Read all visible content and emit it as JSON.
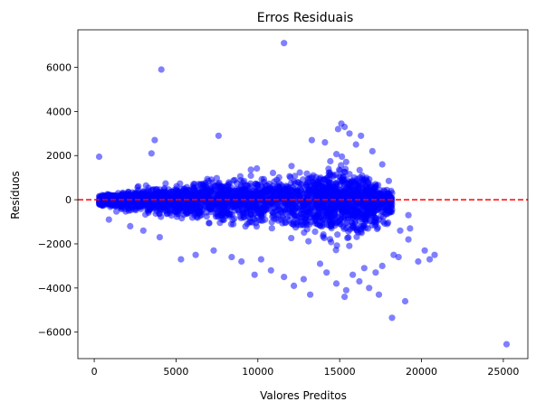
{
  "chart_data": {
    "type": "scatter",
    "title": "Erros Residuais",
    "xlabel": "Valores Preditos",
    "ylabel": "Resíduos",
    "xlim": [
      -1000,
      26500
    ],
    "ylim": [
      -7200,
      7700
    ],
    "xticks": [
      0,
      5000,
      10000,
      15000,
      20000,
      25000
    ],
    "xtick_labels": [
      "0",
      "5000",
      "10000",
      "15000",
      "20000",
      "25000"
    ],
    "yticks": [
      -6000,
      -4000,
      -2000,
      0,
      2000,
      4000,
      6000
    ],
    "ytick_labels": [
      "−6000",
      "−4000",
      "−2000",
      "0",
      "2000",
      "4000",
      "6000"
    ],
    "reference_line": {
      "y": 0,
      "color": "#ff0000",
      "style": "dashed"
    },
    "point_color": "#0000ff",
    "point_alpha": 0.5,
    "grid": false,
    "legend": "none",
    "bulk_envelope": [
      {
        "x": 300,
        "low": -400,
        "high": 400
      },
      {
        "x": 1500,
        "low": -700,
        "high": 500
      },
      {
        "x": 3000,
        "low": -1000,
        "high": 800
      },
      {
        "x": 4500,
        "low": -1300,
        "high": 1100
      },
      {
        "x": 6000,
        "low": -1500,
        "high": 1300
      },
      {
        "x": 8000,
        "low": -1800,
        "high": 1500
      },
      {
        "x": 10000,
        "low": -2000,
        "high": 1600
      },
      {
        "x": 12000,
        "low": -2200,
        "high": 1800
      },
      {
        "x": 14000,
        "low": -2500,
        "high": 2100
      },
      {
        "x": 15500,
        "low": -2700,
        "high": 2300
      },
      {
        "x": 16500,
        "low": -2500,
        "high": 1500
      },
      {
        "x": 17500,
        "low": -1800,
        "high": 900
      },
      {
        "x": 18200,
        "low": -1200,
        "high": 700
      }
    ],
    "outliers": [
      {
        "x": 11600,
        "y": 7100
      },
      {
        "x": 4100,
        "y": 5900
      },
      {
        "x": 7600,
        "y": 2900
      },
      {
        "x": 3700,
        "y": 2700
      },
      {
        "x": 3500,
        "y": 2100
      },
      {
        "x": 300,
        "y": 1950
      },
      {
        "x": 15100,
        "y": 3450
      },
      {
        "x": 15300,
        "y": 3300
      },
      {
        "x": 14900,
        "y": 3200
      },
      {
        "x": 15600,
        "y": 3000
      },
      {
        "x": 16300,
        "y": 2900
      },
      {
        "x": 13300,
        "y": 2700
      },
      {
        "x": 14100,
        "y": 2600
      },
      {
        "x": 16000,
        "y": 2500
      },
      {
        "x": 17000,
        "y": 2200
      },
      {
        "x": 17600,
        "y": 1600
      },
      {
        "x": 18000,
        "y": 850
      },
      {
        "x": 18200,
        "y": -450
      },
      {
        "x": 25200,
        "y": -6550
      },
      {
        "x": 18200,
        "y": -5350
      },
      {
        "x": 19000,
        "y": -4600
      },
      {
        "x": 17400,
        "y": -4300
      },
      {
        "x": 16800,
        "y": -4000
      },
      {
        "x": 15400,
        "y": -4100
      },
      {
        "x": 15300,
        "y": -4400
      },
      {
        "x": 13200,
        "y": -4300
      },
      {
        "x": 12200,
        "y": -3900
      },
      {
        "x": 11600,
        "y": -3500
      },
      {
        "x": 10800,
        "y": -3200
      },
      {
        "x": 9800,
        "y": -3400
      },
      {
        "x": 14800,
        "y": -3800
      },
      {
        "x": 16200,
        "y": -3700
      },
      {
        "x": 17200,
        "y": -3300
      },
      {
        "x": 18600,
        "y": -2600
      },
      {
        "x": 19800,
        "y": -2800
      },
      {
        "x": 20500,
        "y": -2700
      },
      {
        "x": 20800,
        "y": -2500
      },
      {
        "x": 20200,
        "y": -2300
      },
      {
        "x": 19200,
        "y": -1800
      },
      {
        "x": 19300,
        "y": -1300
      },
      {
        "x": 19200,
        "y": -700
      },
      {
        "x": 18700,
        "y": -1400
      },
      {
        "x": 18300,
        "y": -2500
      },
      {
        "x": 17600,
        "y": -3000
      },
      {
        "x": 17900,
        "y": -1100
      },
      {
        "x": 5300,
        "y": -2700
      },
      {
        "x": 6200,
        "y": -2500
      },
      {
        "x": 7300,
        "y": -2300
      },
      {
        "x": 8400,
        "y": -2600
      },
      {
        "x": 9000,
        "y": -2800
      },
      {
        "x": 4000,
        "y": -1700
      },
      {
        "x": 3000,
        "y": -1400
      },
      {
        "x": 2200,
        "y": -1200
      },
      {
        "x": 900,
        "y": -900
      },
      {
        "x": 12800,
        "y": -3600
      },
      {
        "x": 14200,
        "y": -3300
      },
      {
        "x": 13800,
        "y": -2900
      },
      {
        "x": 10200,
        "y": -2700
      },
      {
        "x": 16500,
        "y": -3100
      },
      {
        "x": 15800,
        "y": -3400
      }
    ]
  }
}
